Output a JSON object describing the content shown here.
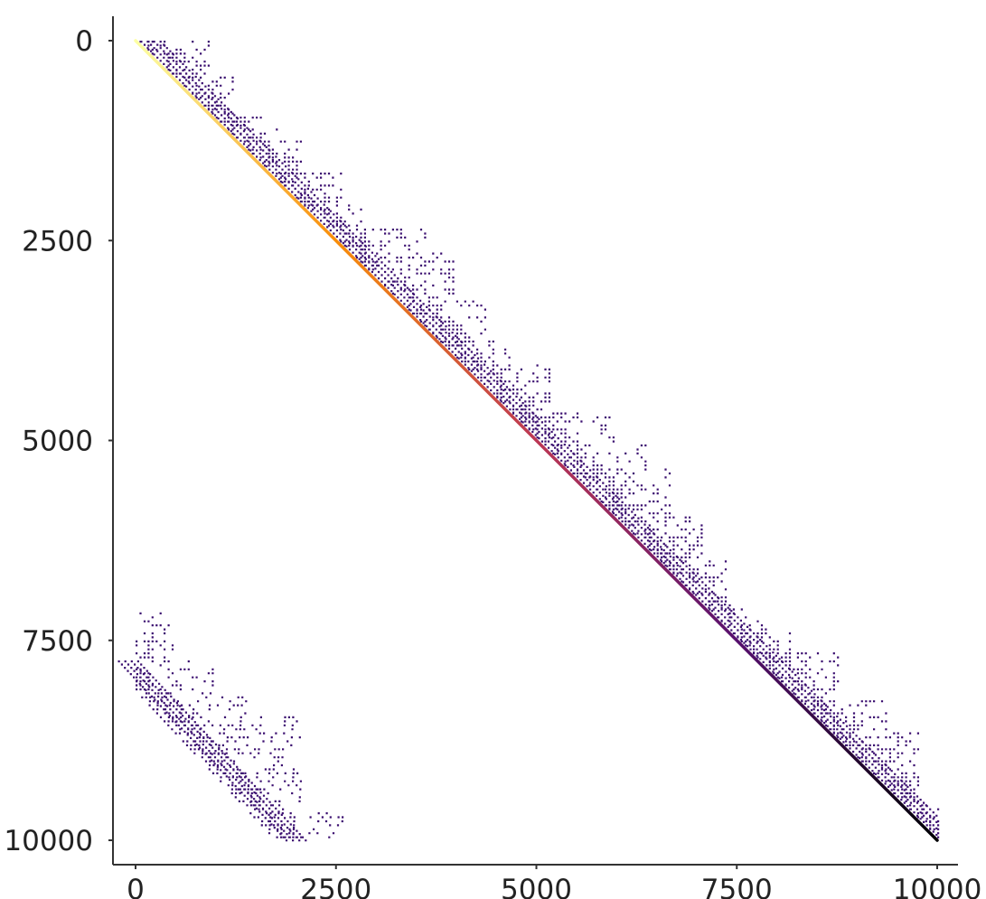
{
  "chart_data": {
    "type": "heatmap",
    "subtype": "sparsity-pattern",
    "title": "",
    "xlabel": "",
    "ylabel": "",
    "xlim": [
      0,
      10000
    ],
    "ylim": [
      10000,
      0
    ],
    "y_axis_inverted": true,
    "x_ticks": [
      "0",
      "2500",
      "5000",
      "7500",
      "10000"
    ],
    "y_ticks": [
      "0",
      "2500",
      "5000",
      "7500",
      "10000"
    ],
    "x_tick_values": [
      0,
      2500,
      5000,
      7500,
      10000
    ],
    "y_tick_values": [
      0,
      2500,
      5000,
      7500,
      10000
    ],
    "grid": false,
    "legend": false,
    "colormap": "inferno",
    "diagonal": {
      "from": [
        0,
        0
      ],
      "to": [
        10000,
        10000
      ],
      "color_stops": [
        "#fcffa4",
        "#f98e09",
        "#bc3754",
        "#57106e",
        "#000004"
      ]
    },
    "nonzero_color": "#3b0f70",
    "upper_band_steps": [
      {
        "row_start": 0,
        "row_end": 450,
        "col_end": 900
      },
      {
        "row_start": 450,
        "row_end": 950,
        "col_end": 1200
      },
      {
        "row_start": 950,
        "row_end": 1250,
        "col_end": 1750
      },
      {
        "row_start": 1250,
        "row_end": 1650,
        "col_end": 2050
      },
      {
        "row_start": 1650,
        "row_end": 2050,
        "col_end": 2550
      },
      {
        "row_start": 2050,
        "row_end": 2350,
        "col_end": 2850
      },
      {
        "row_start": 2350,
        "row_end": 2650,
        "col_end": 3600
      },
      {
        "row_start": 2650,
        "row_end": 3250,
        "col_end": 3950
      },
      {
        "row_start": 3250,
        "row_end": 3750,
        "col_end": 4350
      },
      {
        "row_start": 3750,
        "row_end": 4050,
        "col_end": 4650
      },
      {
        "row_start": 4050,
        "row_end": 4650,
        "col_end": 5150
      },
      {
        "row_start": 4650,
        "row_end": 5050,
        "col_end": 5950
      },
      {
        "row_start": 5050,
        "row_end": 5350,
        "col_end": 6350
      },
      {
        "row_start": 5350,
        "row_end": 5950,
        "col_end": 6650
      },
      {
        "row_start": 5950,
        "row_end": 6450,
        "col_end": 7050
      },
      {
        "row_start": 6450,
        "row_end": 7050,
        "col_end": 7350
      },
      {
        "row_start": 7050,
        "row_end": 7350,
        "col_end": 7850
      },
      {
        "row_start": 7350,
        "row_end": 7650,
        "col_end": 8150
      },
      {
        "row_start": 7650,
        "row_end": 8250,
        "col_end": 8750
      },
      {
        "row_start": 8250,
        "row_end": 8650,
        "col_end": 9350
      },
      {
        "row_start": 8650,
        "row_end": 9550,
        "col_end": 9750
      },
      {
        "row_start": 9550,
        "row_end": 10000,
        "col_end": 10000
      }
    ],
    "upper_band_width": 450,
    "lower_block": {
      "start": [
        0,
        7750
      ],
      "end": [
        2100,
        10000
      ],
      "width": 350,
      "steps": [
        {
          "row_start": 7150,
          "row_end": 7750,
          "col_end": 450
        },
        {
          "row_start": 7750,
          "row_end": 8150,
          "col_end": 950
        },
        {
          "row_start": 8150,
          "row_end": 8450,
          "col_end": 1450
        },
        {
          "row_start": 8450,
          "row_end": 8850,
          "col_end": 2050
        },
        {
          "row_start": 8850,
          "row_end": 9650,
          "col_end": 2050
        },
        {
          "row_start": 9650,
          "row_end": 10000,
          "col_end": 2600
        }
      ]
    }
  }
}
